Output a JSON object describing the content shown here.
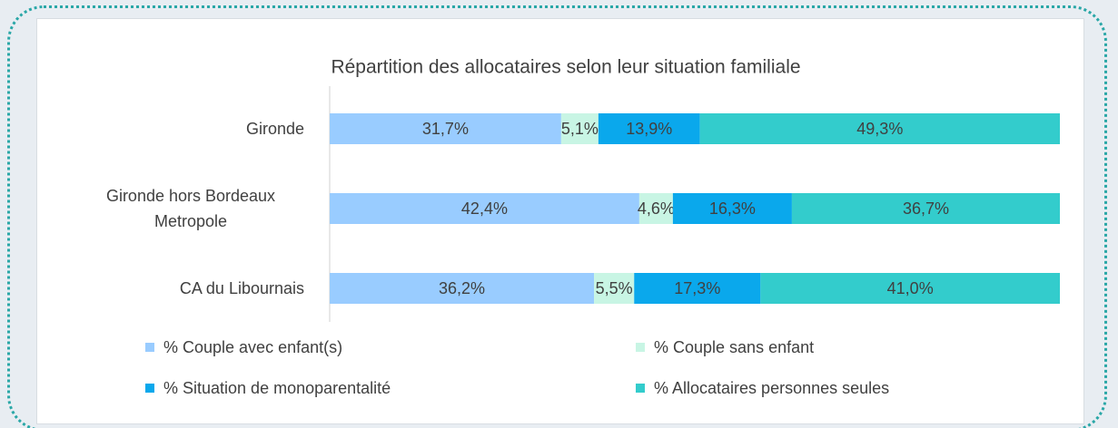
{
  "chart_data": {
    "type": "stacked_bar_horizontal",
    "title": "Répartition des allocataires selon leur situation familiale",
    "categories": [
      "Gironde",
      "Gironde hors Bordeaux Metropole",
      "CA du Libournais"
    ],
    "xlim": [
      0,
      100
    ],
    "series": [
      {
        "name": "% Couple avec enfant(s)",
        "color": "#99ccff",
        "values": [
          31.7,
          42.4,
          36.2
        ],
        "value_labels": [
          "31,7%",
          "42,4%",
          "36,2%"
        ]
      },
      {
        "name": "% Couple sans enfant",
        "color": "#c8f5e4",
        "values": [
          5.1,
          4.6,
          5.5
        ],
        "value_labels": [
          "5,1%",
          "4,6%",
          "5,5%"
        ]
      },
      {
        "name": "% Situation de monoparentalité",
        "color": "#0aa8ec",
        "values": [
          13.9,
          16.3,
          17.3
        ],
        "value_labels": [
          "13,9%",
          "16,3%",
          "17,3%"
        ]
      },
      {
        "name": "% Allocataires personnes seules",
        "color": "#33cccc",
        "values": [
          49.3,
          36.7,
          41.0
        ],
        "value_labels": [
          "49,3%",
          "36,7%",
          "41,0%"
        ]
      }
    ]
  }
}
